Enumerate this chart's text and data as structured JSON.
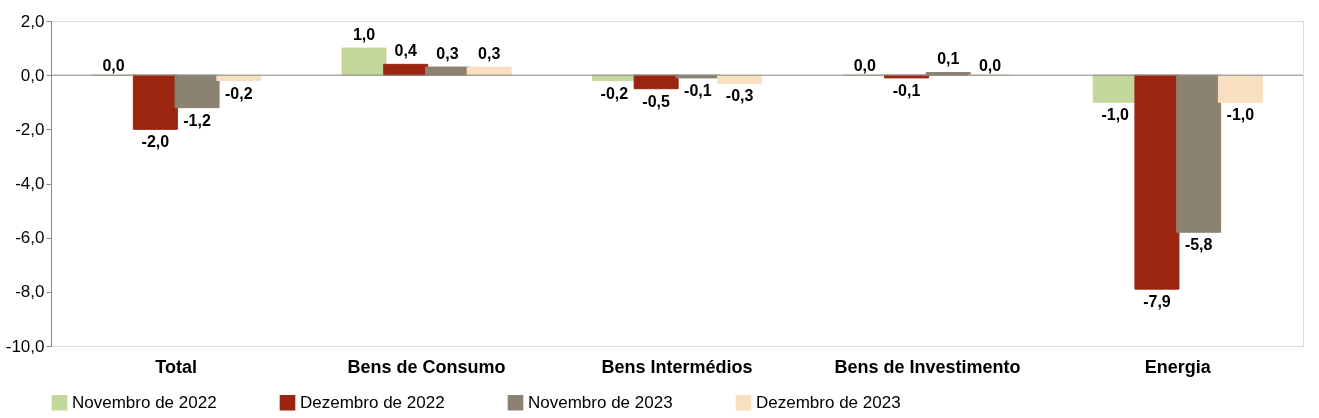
{
  "chart_data": {
    "type": "bar",
    "categories": [
      "Total",
      "Bens de Consumo",
      "Bens Intermédios",
      "Bens de Investimento",
      "Energia"
    ],
    "series": [
      {
        "name": "Novembro de 2022",
        "color": "#c4d79b",
        "values": [
          0.0,
          1.0,
          -0.2,
          0.0,
          -1.0
        ],
        "value_labels": [
          "0,0",
          "1,0",
          "-0,2",
          "0,0",
          "-1,0"
        ]
      },
      {
        "name": "Dezembro de 2022",
        "color": "#9b2510",
        "values": [
          -2.0,
          0.4,
          -0.5,
          -0.1,
          -7.9
        ],
        "value_labels": [
          "-2,0",
          "0,4",
          "-0,5",
          "-0,1",
          "-7,9"
        ]
      },
      {
        "name": "Novembro de 2023",
        "color": "#8b8271",
        "values": [
          -1.2,
          0.3,
          -0.1,
          0.1,
          -5.8
        ],
        "value_labels": [
          "-1,2",
          "0,3",
          "-0,1",
          "0,1",
          "-5,8"
        ]
      },
      {
        "name": "Dezembro de 2023",
        "color": "#f7dfc0",
        "values": [
          -0.2,
          0.3,
          -0.3,
          0.0,
          -1.0
        ],
        "value_labels": [
          "-0,2",
          "0,3",
          "-0,3",
          "0,0",
          "-1,0"
        ]
      }
    ],
    "ylim": [
      -10,
      2
    ],
    "yticks": [
      {
        "value": -10,
        "label": "-10,0"
      },
      {
        "value": -8,
        "label": "-8,0"
      },
      {
        "value": -6,
        "label": "-6,0"
      },
      {
        "value": -4,
        "label": "-4,0"
      },
      {
        "value": -2,
        "label": "-2,0"
      },
      {
        "value": 0,
        "label": "0,0"
      },
      {
        "value": 2,
        "label": "2,0"
      }
    ],
    "legend": "bottom"
  }
}
